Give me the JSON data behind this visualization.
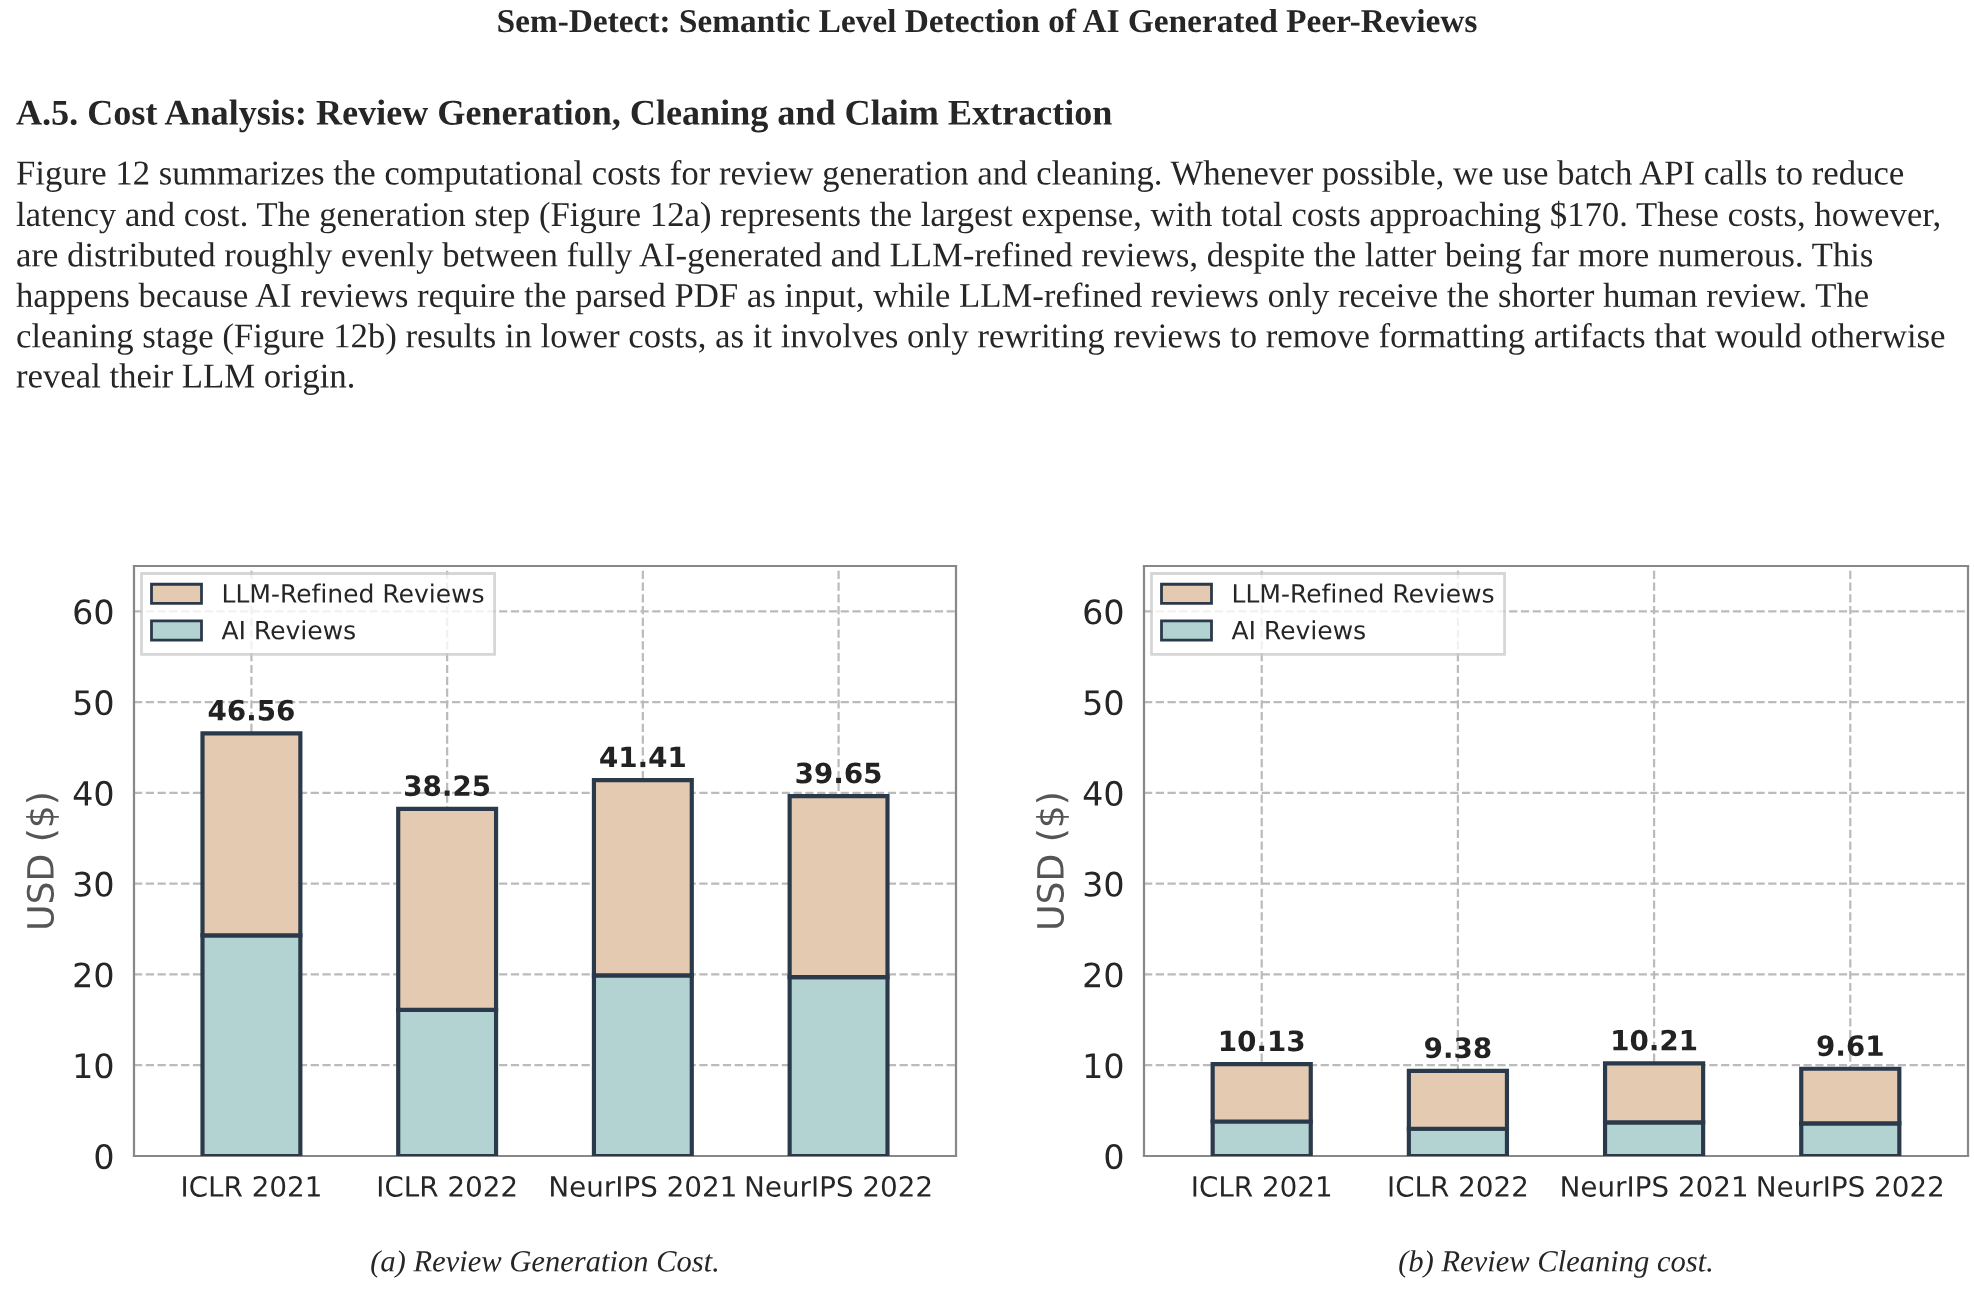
{
  "chart_data": [
    {
      "type": "bar",
      "stacked": true,
      "ylabel": "USD ($)",
      "categories": [
        "ICLR 2021",
        "ICLR 2022",
        "NeurIPS 2021",
        "NeurIPS 2022"
      ],
      "series": [
        {
          "name": "AI Reviews",
          "color": "#b3d2d2",
          "values": [
            24.3,
            16.1,
            19.9,
            19.7
          ]
        },
        {
          "name": "LLM-Refined Reviews",
          "color": "#e3cab0",
          "values": [
            22.26,
            22.15,
            21.51,
            19.95
          ]
        }
      ],
      "totals": [
        "46.56",
        "38.25",
        "41.41",
        "39.65"
      ],
      "ylim": [
        0,
        65
      ],
      "yticks": [
        0,
        10,
        20,
        30,
        40,
        50,
        60
      ],
      "grid": true,
      "legend": "top left",
      "annotations": [
        "Sem-Detect: Semantic Level Detection of AI Generated Peer-Reviews",
        "A.5. Cost Analysis: Review Generation, Cleaning and Claim Extraction",
        "Figure 12 summarizes the computational costs for review generation and cleaning. Whenever possible, we use batch API calls to reduce latency and cost. The generation step (Figure 12a) represents the largest expense, with total costs approaching $170. These costs, however, are distributed roughly evenly between fully AI-generated and LLM-refined reviews, despite the latter being far more numerous. This happens because AI reviews require the parsed PDF as input, while LLM-refined reviews only receive the shorter human review. The cleaning stage (Figure 12b) results in lower costs, as it involves only rewriting reviews to remove formatting artifacts that would otherwise reveal their LLM origin.",
        "(a) Review Generation Cost."
      ]
    },
    {
      "type": "bar",
      "stacked": true,
      "ylabel": "USD ($)",
      "categories": [
        "ICLR 2021",
        "ICLR 2022",
        "NeurIPS 2021",
        "NeurIPS 2022"
      ],
      "series": [
        {
          "name": "AI Reviews",
          "color": "#b3d2d2",
          "values": [
            3.8,
            3.0,
            3.7,
            3.6
          ]
        },
        {
          "name": "LLM-Refined Reviews",
          "color": "#e3cab0",
          "values": [
            6.33,
            6.38,
            6.51,
            6.01
          ]
        }
      ],
      "totals": [
        "10.13",
        "9.38",
        "10.21",
        "9.61"
      ],
      "ylim": [
        0,
        65
      ],
      "yticks": [
        0,
        10,
        20,
        30,
        40,
        50,
        60
      ],
      "grid": true,
      "legend": "top left",
      "annotations": [
        "(b) Review Cleaning cost."
      ]
    }
  ]
}
